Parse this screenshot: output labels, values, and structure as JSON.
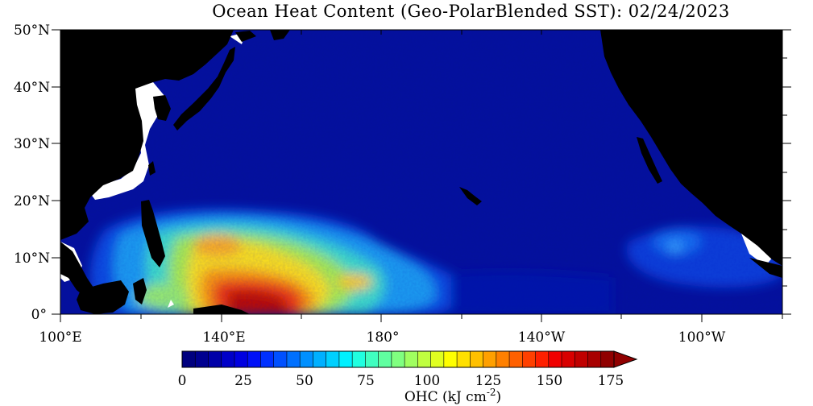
{
  "title": "Ocean Heat Content (Geo-PolarBlended SST): 02/24/2023",
  "lat_labels": [
    "50°N",
    "40°N",
    "30°N",
    "20°N",
    "10°N",
    "0°"
  ],
  "lon_labels": [
    "100°E",
    "140°E",
    "180°",
    "140°W",
    "100°W"
  ],
  "colorbar": {
    "ticks": [
      "0",
      "25",
      "50",
      "75",
      "100",
      "125",
      "150",
      "175"
    ],
    "label": "OHC (kJ cm",
    "label_sup": "-2",
    "label_end": ")",
    "colors": [
      "#00007f",
      "#000090",
      "#0000a8",
      "#0000c8",
      "#0000e0",
      "#0010f8",
      "#0030ff",
      "#0050ff",
      "#0070ff",
      "#0090ff",
      "#00b0ff",
      "#00d0ff",
      "#00f0ff",
      "#20ffe0",
      "#40ffc0",
      "#60ffa0",
      "#80ff80",
      "#a0ff60",
      "#c0ff40",
      "#e0ff20",
      "#ffff00",
      "#ffe000",
      "#ffc000",
      "#ffa000",
      "#ff8000",
      "#ff6000",
      "#ff4000",
      "#ff2000",
      "#f00000",
      "#d80000",
      "#c00000",
      "#a80000",
      "#900000"
    ]
  }
}
